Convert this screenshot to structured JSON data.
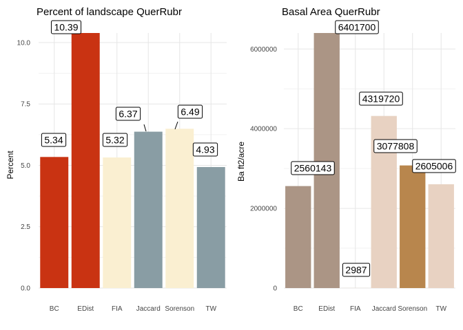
{
  "chart_data": [
    {
      "type": "bar",
      "title": "Percent of landscape  QuerRubr",
      "xlabel": "",
      "ylabel": "Percent",
      "categories": [
        "BC",
        "EDist",
        "FIA",
        "Jaccard",
        "Sorenson",
        "TW"
      ],
      "values": [
        5.34,
        10.39,
        5.32,
        6.37,
        6.49,
        4.93
      ],
      "data_labels": [
        "5.34",
        "10.39",
        "5.32",
        "6.37",
        "6.49",
        "4.93"
      ],
      "colors": [
        "#C93312",
        "#C93312",
        "#FAEFD1",
        "#899DA4",
        "#FAEFD1",
        "#899DA4"
      ],
      "yticks": [
        0,
        2.5,
        5,
        7.5,
        10
      ],
      "ytick_labels": [
        "0.0",
        "2.5",
        "5.0",
        "7.5",
        "10.0"
      ],
      "ylim": [
        0,
        10.39
      ],
      "grid": true,
      "legend": "none"
    },
    {
      "type": "bar",
      "title": "Basal Area  QuerRubr",
      "xlabel": "",
      "ylabel": "Ba ft2/acre",
      "categories": [
        "BC",
        "EDist",
        "FIA",
        "Jaccard",
        "Sorenson",
        "TW"
      ],
      "values": [
        2560143,
        6401700,
        2987,
        4319720,
        3077808,
        2605006
      ],
      "data_labels": [
        "2560143",
        "6401700",
        "2987",
        "4319720",
        "3077808",
        "2605006"
      ],
      "colors": [
        "#AB9585",
        "#AB9585",
        "#E8D2C2",
        "#E8D2C2",
        "#B8864D",
        "#E8D2C2"
      ],
      "yticks": [
        0,
        2000000,
        4000000,
        6000000
      ],
      "ytick_labels": [
        "0",
        "2000000",
        "4000000",
        "6000000"
      ],
      "ylim": [
        0,
        6401700
      ],
      "grid": true,
      "legend": "none"
    }
  ]
}
